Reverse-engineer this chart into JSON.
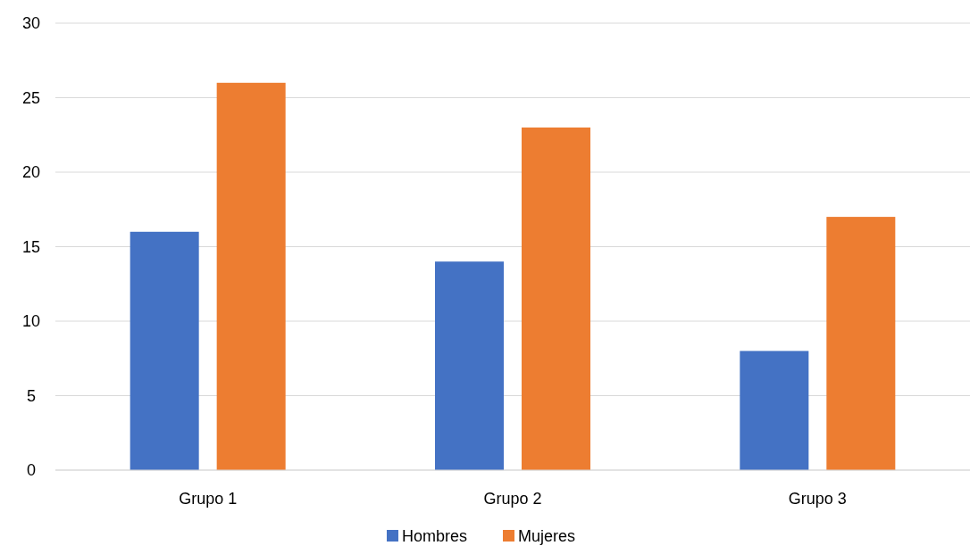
{
  "chart_data": {
    "type": "bar",
    "categories": [
      "Grupo 1",
      "Grupo 2",
      "Grupo 3"
    ],
    "series": [
      {
        "name": "Hombres",
        "color": "#4472c4",
        "values": [
          16,
          14,
          8
        ]
      },
      {
        "name": "Mujeres",
        "color": "#ed7d31",
        "values": [
          26,
          23,
          17
        ]
      }
    ],
    "ylim": [
      0,
      30
    ],
    "yticks": [
      0,
      5,
      10,
      15,
      20,
      25,
      30
    ],
    "grid": "y",
    "legend": "bottom"
  }
}
